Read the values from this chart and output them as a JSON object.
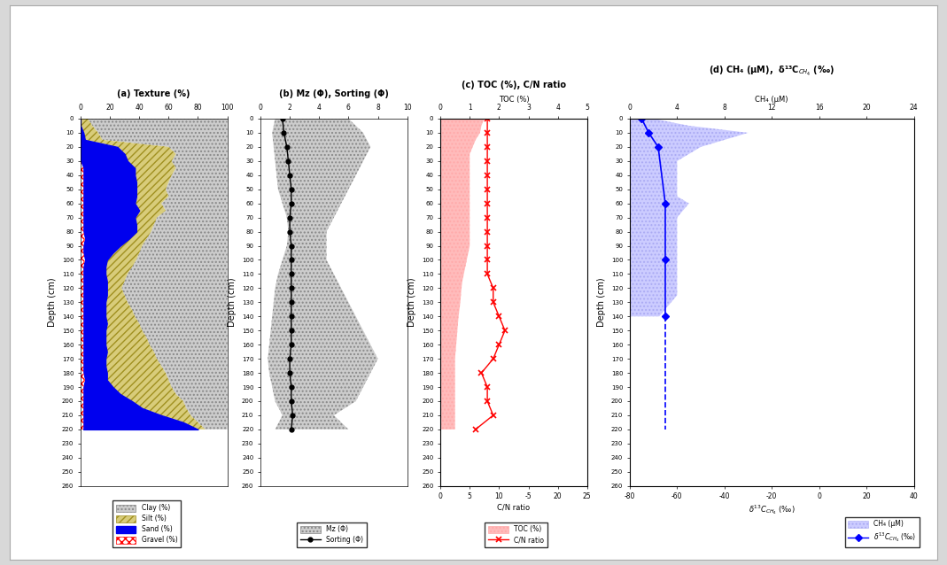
{
  "depth_texture": [
    0,
    5,
    10,
    15,
    20,
    25,
    30,
    35,
    40,
    45,
    50,
    55,
    60,
    65,
    70,
    75,
    80,
    85,
    90,
    95,
    100,
    105,
    110,
    115,
    120,
    125,
    130,
    135,
    140,
    145,
    150,
    155,
    160,
    165,
    170,
    175,
    180,
    185,
    190,
    195,
    200,
    205,
    210,
    215,
    220
  ],
  "clay": [
    95,
    92,
    88,
    85,
    40,
    35,
    38,
    35,
    38,
    40,
    42,
    40,
    45,
    42,
    48,
    50,
    52,
    55,
    58,
    60,
    62,
    65,
    68,
    70,
    72,
    70,
    68,
    65,
    63,
    60,
    58,
    55,
    53,
    50,
    48,
    45,
    42,
    40,
    38,
    35,
    30,
    28,
    25,
    20,
    15
  ],
  "silt": [
    5,
    8,
    10,
    12,
    35,
    35,
    30,
    28,
    25,
    22,
    20,
    22,
    18,
    18,
    15,
    12,
    10,
    12,
    15,
    18,
    20,
    18,
    15,
    12,
    10,
    12,
    15,
    18,
    20,
    22,
    25,
    28,
    30,
    32,
    35,
    38,
    40,
    42,
    40,
    38,
    35,
    30,
    20,
    10,
    5
  ],
  "sand": [
    0,
    0,
    2,
    3,
    25,
    30,
    32,
    35,
    35,
    36,
    36,
    36,
    35,
    38,
    35,
    36,
    36,
    30,
    25,
    20,
    15,
    15,
    15,
    16,
    16,
    16,
    15,
    15,
    15,
    16,
    15,
    15,
    15,
    16,
    15,
    15,
    16,
    15,
    20,
    25,
    33,
    40,
    53,
    68,
    78
  ],
  "gravel": [
    0,
    0,
    0,
    0,
    0,
    0,
    0,
    2,
    2,
    2,
    2,
    2,
    2,
    2,
    2,
    2,
    2,
    3,
    2,
    2,
    3,
    2,
    2,
    2,
    2,
    2,
    2,
    2,
    2,
    2,
    2,
    2,
    2,
    2,
    2,
    2,
    2,
    3,
    2,
    2,
    2,
    2,
    2,
    2,
    2
  ],
  "depth_mz": [
    0,
    10,
    20,
    30,
    40,
    50,
    60,
    70,
    80,
    90,
    100,
    110,
    120,
    130,
    140,
    150,
    160,
    170,
    180,
    190,
    200,
    210,
    220
  ],
  "mz_left": [
    1.0,
    0.8,
    0.9,
    1.0,
    1.1,
    1.2,
    1.5,
    1.8,
    1.9,
    1.8,
    1.5,
    1.2,
    1.0,
    0.9,
    0.8,
    0.7,
    0.6,
    0.5,
    0.6,
    0.8,
    1.0,
    1.5,
    1.0
  ],
  "mz_right": [
    6,
    7,
    7.5,
    7,
    6.5,
    6,
    5.5,
    5,
    4.5,
    4.5,
    4.5,
    5,
    5.5,
    6,
    6.5,
    7,
    7.5,
    8,
    7.5,
    7,
    6.5,
    5,
    6
  ],
  "sorting_depth": [
    0,
    10,
    20,
    30,
    40,
    50,
    60,
    70,
    80,
    90,
    100,
    110,
    120,
    130,
    140,
    150,
    160,
    170,
    180,
    190,
    200,
    210,
    220
  ],
  "sorting": [
    1.5,
    1.6,
    1.8,
    1.9,
    2.0,
    2.1,
    2.1,
    2.0,
    2.0,
    2.1,
    2.1,
    2.1,
    2.1,
    2.1,
    2.1,
    2.1,
    2.1,
    2.0,
    2.0,
    2.1,
    2.1,
    2.2,
    2.1
  ],
  "toc_depth": [
    0,
    5,
    10,
    15,
    20,
    25,
    30,
    35,
    40,
    45,
    50,
    55,
    60,
    65,
    70,
    75,
    80,
    85,
    90,
    95,
    100,
    105,
    110,
    115,
    120,
    125,
    130,
    135,
    140,
    145,
    150,
    155,
    160,
    165,
    170,
    175,
    180,
    185,
    190,
    195,
    200,
    205,
    210,
    215,
    220
  ],
  "toc_vals": [
    1.5,
    1.4,
    1.35,
    1.2,
    1.1,
    1.0,
    1.0,
    1.0,
    1.0,
    1.0,
    1.0,
    1.0,
    1.0,
    1.0,
    1.0,
    1.0,
    1.0,
    1.0,
    1.0,
    0.95,
    0.9,
    0.85,
    0.8,
    0.75,
    0.72,
    0.7,
    0.68,
    0.65,
    0.62,
    0.6,
    0.58,
    0.56,
    0.54,
    0.52,
    0.5,
    0.5,
    0.5,
    0.5,
    0.5,
    0.5,
    0.5,
    0.5,
    0.5,
    0.5,
    0.5
  ],
  "cn_depth": [
    0,
    10,
    20,
    30,
    40,
    50,
    60,
    70,
    80,
    90,
    100,
    110,
    120,
    130,
    140,
    150,
    160,
    170,
    180,
    190,
    200,
    210,
    220
  ],
  "cn": [
    8,
    8,
    8,
    8,
    8,
    8,
    8,
    8,
    8,
    8,
    8,
    8,
    9,
    9,
    10,
    11,
    10,
    9,
    7,
    8,
    8,
    9,
    6
  ],
  "ch4_fill_depth": [
    0,
    5,
    10,
    15,
    20,
    25,
    30,
    35,
    40,
    45,
    50,
    55,
    60,
    65,
    70,
    75,
    80,
    85,
    90,
    95,
    100,
    105,
    110,
    115,
    120,
    125,
    130,
    135,
    140
  ],
  "ch4_fill_right": [
    2,
    5,
    10,
    8,
    6,
    5,
    4,
    4,
    4,
    4,
    4,
    4,
    5,
    4.5,
    4,
    4,
    4,
    4,
    4,
    4,
    4,
    4,
    4,
    4,
    4,
    4,
    3.5,
    3,
    2.5
  ],
  "d13c_solid_depth": [
    0,
    10,
    20,
    60,
    100,
    140
  ],
  "d13c_solid_vals": [
    -75,
    -72,
    -68,
    -65,
    -65,
    -65
  ],
  "d13c_dashed_depth": [
    140,
    160,
    180,
    200,
    220
  ],
  "d13c_dashed_vals": [
    -65,
    -65,
    -65,
    -65,
    -65
  ],
  "depth_max": 260,
  "depth_ticks": [
    0,
    10,
    20,
    30,
    40,
    50,
    60,
    70,
    80,
    90,
    100,
    110,
    120,
    130,
    140,
    150,
    160,
    170,
    180,
    190,
    200,
    210,
    220,
    230,
    240,
    250,
    260
  ]
}
